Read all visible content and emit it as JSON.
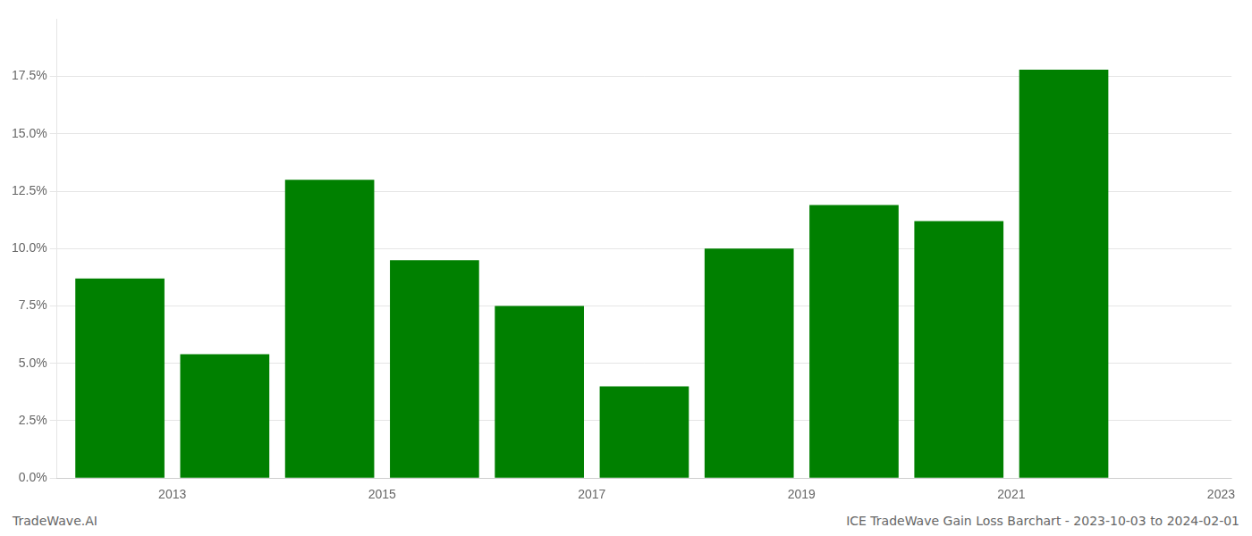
{
  "chart_data": {
    "type": "bar",
    "x": [
      2013,
      2014,
      2015,
      2016,
      2017,
      2018,
      2019,
      2020,
      2021,
      2022
    ],
    "values": [
      0.087,
      0.054,
      0.13,
      0.095,
      0.075,
      0.04,
      0.1,
      0.119,
      0.112,
      0.178
    ],
    "color": "#008000",
    "xlim": [
      2012.4,
      2023.6
    ],
    "xticks": [
      {
        "value": 2013.5,
        "label": "2013"
      },
      {
        "value": 2015.5,
        "label": "2015"
      },
      {
        "value": 2017.5,
        "label": "2017"
      },
      {
        "value": 2019.5,
        "label": "2019"
      },
      {
        "value": 2021.5,
        "label": "2021"
      },
      {
        "value": 2023.5,
        "label": "2023"
      }
    ],
    "ylim": [
      0,
      0.2
    ],
    "yticks": [
      {
        "value": 0.0,
        "label": "0.0%"
      },
      {
        "value": 0.025,
        "label": "2.5%"
      },
      {
        "value": 0.05,
        "label": "5.0%"
      },
      {
        "value": 0.075,
        "label": "7.5%"
      },
      {
        "value": 0.1,
        "label": "10.0%"
      },
      {
        "value": 0.125,
        "label": "12.5%"
      },
      {
        "value": 0.15,
        "label": "15.0%"
      },
      {
        "value": 0.175,
        "label": "17.5%"
      }
    ],
    "grid": true,
    "annotations": [
      "TradeWave.AI",
      "ICE TradeWave Gain Loss Barchart - 2023-10-03 to 2024-02-01"
    ]
  }
}
